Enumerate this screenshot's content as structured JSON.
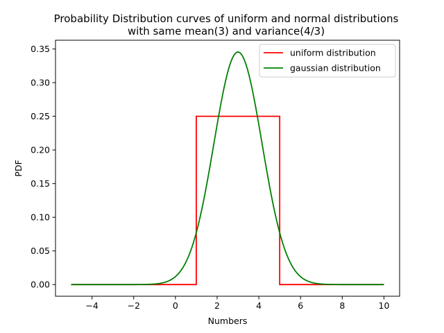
{
  "chart_data": {
    "type": "line",
    "title_line1": "Probability Distribution curves of uniform and normal distributions",
    "title_line2": "with same mean(3) and variance(4/3)",
    "xlabel": "Numbers",
    "ylabel": "PDF",
    "xlim": [
      -5.75,
      10.75
    ],
    "ylim": [
      -0.0173,
      0.363
    ],
    "xticks": [
      -4,
      -2,
      0,
      2,
      4,
      6,
      8,
      10
    ],
    "xtick_labels": [
      "−4",
      "−2",
      "0",
      "2",
      "4",
      "6",
      "8",
      "10"
    ],
    "yticks": [
      0.0,
      0.05,
      0.1,
      0.15,
      0.2,
      0.25,
      0.3,
      0.35
    ],
    "ytick_labels": [
      "0.00",
      "0.05",
      "0.10",
      "0.15",
      "0.20",
      "0.25",
      "0.30",
      "0.35"
    ],
    "grid": false,
    "legend_position": "top-right",
    "series": [
      {
        "name": "uniform distribution",
        "color": "#ff0000",
        "x": [
          -5,
          1,
          1,
          5,
          5,
          10
        ],
        "y": [
          0,
          0,
          0.25,
          0.25,
          0,
          0
        ]
      },
      {
        "name": "gaussian distribution",
        "color": "#008000",
        "distribution": "normal",
        "mean": 3,
        "variance": 1.3333,
        "x_range": [
          -5,
          10
        ]
      }
    ]
  }
}
